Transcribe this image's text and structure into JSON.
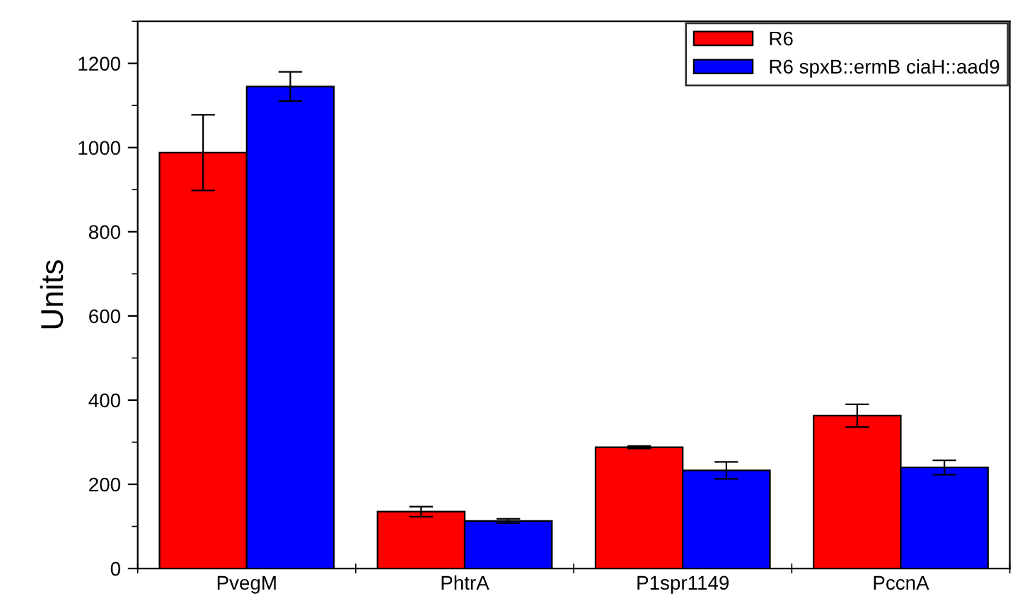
{
  "chart_data": {
    "type": "bar",
    "ylabel": "Units",
    "categories": [
      "PvegM",
      "PhtrA",
      "P1spr1149",
      "PccnA"
    ],
    "series": [
      {
        "name": "R6",
        "color": "#ff0000",
        "values": [
          988,
          135,
          288,
          363
        ],
        "errors": [
          90,
          12,
          3,
          27
        ]
      },
      {
        "name": "R6 spxB::ermB ciaH::aad9",
        "color": "#0000ff",
        "values": [
          1145,
          113,
          233,
          240
        ],
        "errors": [
          35,
          5,
          20,
          17
        ]
      }
    ],
    "ylim": [
      0,
      1300
    ],
    "yticks": [
      0,
      200,
      400,
      600,
      800,
      1000,
      1200
    ],
    "grid": false,
    "legend": "top right"
  }
}
